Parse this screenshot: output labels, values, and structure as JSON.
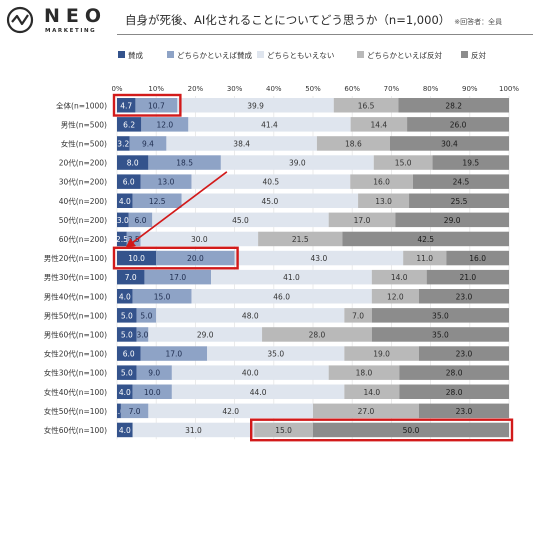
{
  "brand": {
    "name": "NEO",
    "sub": "MARKETING"
  },
  "header": {
    "title": "自身が死後、AI化されることについてどう思うか（n=1,000）",
    "note": "※回答者：全員"
  },
  "colors": {
    "segments": [
      "#34538c",
      "#8ea3c6",
      "#dfe5ee",
      "#b9b9b9",
      "#8c8c8c"
    ],
    "segment_text": [
      "#ffffff",
      "#1f2d4f",
      "#333333",
      "#333333",
      "#1a1a1a"
    ],
    "highlight": "#d21a1a"
  },
  "chart_data": {
    "type": "bar",
    "orientation": "horizontal",
    "stacked": true,
    "xlim": [
      0,
      100
    ],
    "x_ticks": [
      "0%",
      "10%",
      "20%",
      "30%",
      "40%",
      "50%",
      "60%",
      "70%",
      "80%",
      "90%",
      "100%"
    ],
    "legend": [
      "賛成",
      "どちらかといえば賛成",
      "どちらともいえない",
      "どちらかといえば反対",
      "反対"
    ],
    "categories": [
      "全体(n=1000)",
      "男性(n=500)",
      "女性(n=500)",
      "20代(n=200)",
      "30代(n=200)",
      "40代(n=200)",
      "50代(n=200)",
      "60代(n=200)",
      "男性20代(n=100)",
      "男性30代(n=100)",
      "男性40代(n=100)",
      "男性50代(n=100)",
      "男性60代(n=100)",
      "女性20代(n=100)",
      "女性30代(n=100)",
      "女性40代(n=100)",
      "女性50代(n=100)",
      "女性60代(n=100)"
    ],
    "series": [
      {
        "name": "賛成",
        "values": [
          4.7,
          6.2,
          3.2,
          8.0,
          6.0,
          4.0,
          3.0,
          2.5,
          10.0,
          7.0,
          4.0,
          5.0,
          5.0,
          6.0,
          5.0,
          4.0,
          1.0,
          4.0
        ]
      },
      {
        "name": "どちらかといえば賛成",
        "values": [
          10.7,
          12.0,
          9.4,
          18.5,
          13.0,
          12.5,
          6.0,
          3.5,
          20.0,
          17.0,
          15.0,
          5.0,
          3.0,
          17.0,
          9.0,
          10.0,
          7.0,
          null
        ]
      },
      {
        "name": "どちらともいえない",
        "values": [
          39.9,
          41.4,
          38.4,
          39.0,
          40.5,
          45.0,
          45.0,
          30.0,
          43.0,
          41.0,
          46.0,
          48.0,
          29.0,
          35.0,
          40.0,
          44.0,
          42.0,
          31.0
        ]
      },
      {
        "name": "どちらかといえば反対",
        "values": [
          16.5,
          14.4,
          18.6,
          15.0,
          16.0,
          13.0,
          17.0,
          21.5,
          11.0,
          14.0,
          12.0,
          7.0,
          28.0,
          19.0,
          18.0,
          14.0,
          27.0,
          15.0
        ]
      },
      {
        "name": "反対",
        "values": [
          28.2,
          26.0,
          30.4,
          19.5,
          24.5,
          25.5,
          29.0,
          42.5,
          16.0,
          21.0,
          23.0,
          35.0,
          35.0,
          23.0,
          28.0,
          28.0,
          23.0,
          50.0
        ]
      }
    ],
    "highlights": [
      {
        "row": 0,
        "from_series": 0,
        "to_series": 1
      },
      {
        "row": 8,
        "from_series": 0,
        "to_series": 1
      },
      {
        "row": 17,
        "from_series": 3,
        "to_series": 4
      }
    ],
    "arrow": {
      "from_row": 3,
      "to_row": 8
    }
  }
}
